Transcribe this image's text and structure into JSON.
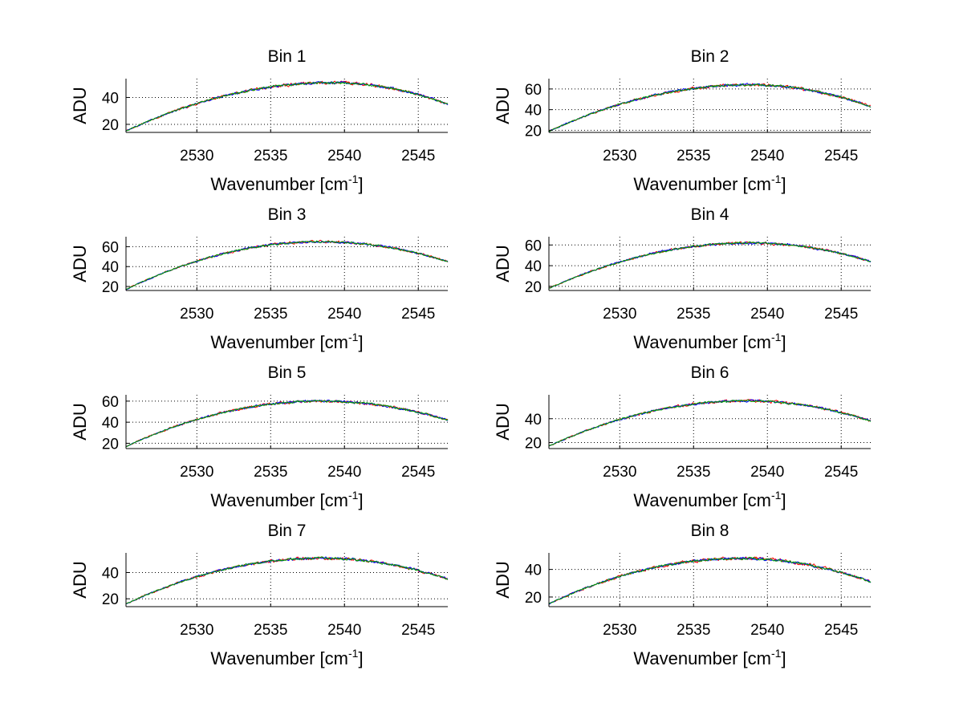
{
  "figure": {
    "background": "#ffffff"
  },
  "chart_data": [
    {
      "type": "line",
      "title": "Bin 1",
      "xlabel": "Wavenumber [cm",
      "xlabel_sup": "-1",
      "xlabel_close": "]",
      "ylabel": "ADU",
      "xlim": [
        2525.2,
        2547.0
      ],
      "ylim": [
        14,
        54
      ],
      "xticks": [
        2530,
        2535,
        2540,
        2545
      ],
      "yticks": [
        20,
        40
      ],
      "grid": true,
      "curve": {
        "start": 15,
        "peak": 51,
        "peak_x": 2539.2,
        "end": 35
      },
      "series": [
        {
          "name": "red",
          "color": "#ff0000",
          "noise": 1.0
        },
        {
          "name": "blue",
          "color": "#0000ff",
          "noise": 0.8
        },
        {
          "name": "green",
          "color": "#00a000",
          "noise": 0.7
        }
      ]
    },
    {
      "type": "line",
      "title": "Bin 2",
      "xlabel": "Wavenumber [cm",
      "xlabel_sup": "-1",
      "xlabel_close": "]",
      "ylabel": "ADU",
      "xlim": [
        2525.2,
        2547.0
      ],
      "ylim": [
        18,
        70
      ],
      "xticks": [
        2530,
        2535,
        2540,
        2545
      ],
      "yticks": [
        20,
        40,
        60
      ],
      "grid": true,
      "curve": {
        "start": 19,
        "peak": 64,
        "peak_x": 2538.8,
        "end": 43
      },
      "series": [
        {
          "name": "red",
          "color": "#ff0000",
          "noise": 1.2
        },
        {
          "name": "blue",
          "color": "#0000ff",
          "noise": 1.0
        },
        {
          "name": "green",
          "color": "#00a000",
          "noise": 0.9
        }
      ]
    },
    {
      "type": "line",
      "title": "Bin 3",
      "xlabel": "Wavenumber [cm",
      "xlabel_sup": "-1",
      "xlabel_close": "]",
      "ylabel": "ADU",
      "xlim": [
        2525.2,
        2547.0
      ],
      "ylim": [
        16,
        70
      ],
      "xticks": [
        2530,
        2535,
        2540,
        2545
      ],
      "yticks": [
        20,
        40,
        60
      ],
      "grid": true,
      "curve": {
        "start": 17,
        "peak": 65,
        "peak_x": 2538.4,
        "end": 45
      },
      "series": [
        {
          "name": "red",
          "color": "#ff0000",
          "noise": 1.1
        },
        {
          "name": "blue",
          "color": "#0000ff",
          "noise": 0.9
        },
        {
          "name": "green",
          "color": "#00a000",
          "noise": 0.8
        }
      ]
    },
    {
      "type": "line",
      "title": "Bin 4",
      "xlabel": "Wavenumber [cm",
      "xlabel_sup": "-1",
      "xlabel_close": "]",
      "ylabel": "ADU",
      "xlim": [
        2525.2,
        2547.0
      ],
      "ylim": [
        16,
        68
      ],
      "xticks": [
        2530,
        2535,
        2540,
        2545
      ],
      "yticks": [
        20,
        40,
        60
      ],
      "grid": true,
      "curve": {
        "start": 18,
        "peak": 62,
        "peak_x": 2538.8,
        "end": 44
      },
      "series": [
        {
          "name": "red",
          "color": "#ff0000",
          "noise": 1.1
        },
        {
          "name": "blue",
          "color": "#0000ff",
          "noise": 0.9
        },
        {
          "name": "green",
          "color": "#00a000",
          "noise": 0.8
        }
      ]
    },
    {
      "type": "line",
      "title": "Bin 5",
      "xlabel": "Wavenumber [cm",
      "xlabel_sup": "-1",
      "xlabel_close": "]",
      "ylabel": "ADU",
      "xlim": [
        2525.2,
        2547.0
      ],
      "ylim": [
        15,
        66
      ],
      "xticks": [
        2530,
        2535,
        2540,
        2545
      ],
      "yticks": [
        20,
        40,
        60
      ],
      "grid": true,
      "curve": {
        "start": 17,
        "peak": 60,
        "peak_x": 2538.4,
        "end": 42
      },
      "series": [
        {
          "name": "red",
          "color": "#ff0000",
          "noise": 1.1
        },
        {
          "name": "blue",
          "color": "#0000ff",
          "noise": 0.9
        },
        {
          "name": "green",
          "color": "#00a000",
          "noise": 0.8
        }
      ]
    },
    {
      "type": "line",
      "title": "Bin 6",
      "xlabel": "Wavenumber [cm",
      "xlabel_sup": "-1",
      "xlabel_close": "]",
      "ylabel": "ADU",
      "xlim": [
        2525.2,
        2547.0
      ],
      "ylim": [
        15,
        60
      ],
      "xticks": [
        2530,
        2535,
        2540,
        2545
      ],
      "yticks": [
        20,
        40
      ],
      "grid": true,
      "curve": {
        "start": 17,
        "peak": 55,
        "peak_x": 2538.6,
        "end": 38
      },
      "series": [
        {
          "name": "red",
          "color": "#ff0000",
          "noise": 1.0
        },
        {
          "name": "blue",
          "color": "#0000ff",
          "noise": 0.8
        },
        {
          "name": "green",
          "color": "#00a000",
          "noise": 0.7
        }
      ]
    },
    {
      "type": "line",
      "title": "Bin 7",
      "xlabel": "Wavenumber [cm",
      "xlabel_sup": "-1",
      "xlabel_close": "]",
      "ylabel": "ADU",
      "xlim": [
        2525.2,
        2547.0
      ],
      "ylim": [
        14,
        55
      ],
      "xticks": [
        2530,
        2535,
        2540,
        2545
      ],
      "yticks": [
        20,
        40
      ],
      "grid": true,
      "curve": {
        "start": 16,
        "peak": 51,
        "peak_x": 2538.4,
        "end": 35
      },
      "series": [
        {
          "name": "red",
          "color": "#ff0000",
          "noise": 1.0
        },
        {
          "name": "blue",
          "color": "#0000ff",
          "noise": 0.8
        },
        {
          "name": "green",
          "color": "#00a000",
          "noise": 0.7
        }
      ]
    },
    {
      "type": "line",
      "title": "Bin 8",
      "xlabel": "Wavenumber [cm",
      "xlabel_sup": "-1",
      "xlabel_close": "]",
      "ylabel": "ADU",
      "xlim": [
        2525.2,
        2547.0
      ],
      "ylim": [
        13,
        52
      ],
      "xticks": [
        2530,
        2535,
        2540,
        2545
      ],
      "yticks": [
        20,
        40
      ],
      "grid": true,
      "curve": {
        "start": 15,
        "peak": 48,
        "peak_x": 2538.2,
        "end": 31
      },
      "series": [
        {
          "name": "red",
          "color": "#ff0000",
          "noise": 1.0
        },
        {
          "name": "blue",
          "color": "#0000ff",
          "noise": 0.8
        },
        {
          "name": "green",
          "color": "#00a000",
          "noise": 0.7
        }
      ]
    }
  ]
}
